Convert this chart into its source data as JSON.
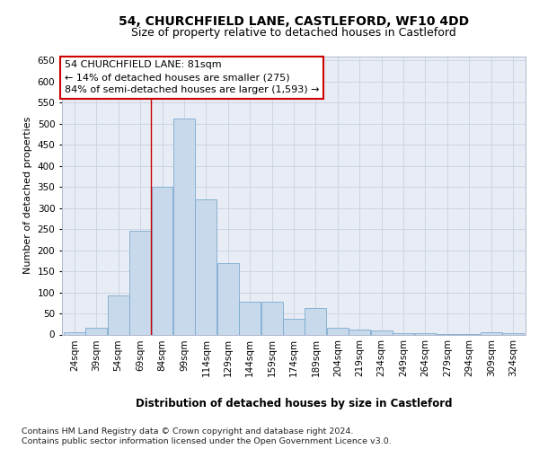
{
  "title": "54, CHURCHFIELD LANE, CASTLEFORD, WF10 4DD",
  "subtitle": "Size of property relative to detached houses in Castleford",
  "xlabel": "Distribution of detached houses by size in Castleford",
  "ylabel": "Number of detached properties",
  "footer1": "Contains HM Land Registry data © Crown copyright and database right 2024.",
  "footer2": "Contains public sector information licensed under the Open Government Licence v3.0.",
  "annotation_line1": "54 CHURCHFIELD LANE: 81sqm",
  "annotation_line2": "← 14% of detached houses are smaller (275)",
  "annotation_line3": "84% of semi-detached houses are larger (1,593) →",
  "bar_color": "#c9d9ec",
  "bar_edge_color": "#7aaacf",
  "vline_color": "#cc0000",
  "vline_x_bin": 4,
  "categories": [
    "24sqm",
    "39sqm",
    "54sqm",
    "69sqm",
    "84sqm",
    "99sqm",
    "114sqm",
    "129sqm",
    "144sqm",
    "159sqm",
    "174sqm",
    "189sqm",
    "204sqm",
    "219sqm",
    "234sqm",
    "249sqm",
    "264sqm",
    "279sqm",
    "294sqm",
    "309sqm",
    "324sqm"
  ],
  "bin_starts": [
    24,
    39,
    54,
    69,
    84,
    99,
    114,
    129,
    144,
    159,
    174,
    189,
    204,
    219,
    234,
    249,
    264,
    279,
    294,
    309,
    324
  ],
  "bin_width": 15,
  "values": [
    5,
    17,
    92,
    245,
    350,
    512,
    320,
    170,
    77,
    77,
    37,
    63,
    15,
    12,
    10,
    3,
    3,
    2,
    2,
    5,
    3
  ],
  "ylim": [
    0,
    660
  ],
  "yticks": [
    0,
    50,
    100,
    150,
    200,
    250,
    300,
    350,
    400,
    450,
    500,
    550,
    600,
    650
  ],
  "grid_color": "#cdd5e3",
  "background_color": "#e8ecf5",
  "box_color": "#cc0000",
  "title_fontsize": 10,
  "subtitle_fontsize": 9,
  "xlabel_fontsize": 8.5,
  "ylabel_fontsize": 8,
  "tick_fontsize": 7.5,
  "annotation_fontsize": 8,
  "footer_fontsize": 6.8
}
